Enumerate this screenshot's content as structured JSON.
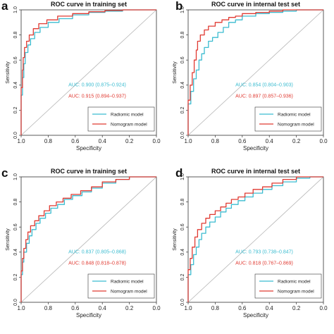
{
  "figure": {
    "panels": [
      {
        "letter": "a",
        "title": "ROC curve in training set"
      },
      {
        "letter": "b",
        "title": "ROC curve in internal test set"
      },
      {
        "letter": "c",
        "title": "ROC curve in training set"
      },
      {
        "letter": "d",
        "title": "ROC curve in internal test set"
      }
    ]
  },
  "chart_data": [
    {
      "panel": "a",
      "type": "line",
      "title": "ROC curve in training set",
      "xlabel": "Specificity",
      "ylabel": "Sensitivity",
      "x_reversed": true,
      "xlim": [
        1.0,
        0.0
      ],
      "ylim": [
        0.0,
        1.0
      ],
      "xticks": [
        "1.0",
        "0.8",
        "0.6",
        "0.4",
        "0.2",
        "0.0"
      ],
      "yticks": [
        "0.0",
        "0.2",
        "0.4",
        "0.6",
        "0.8",
        "1.0"
      ],
      "legend_position": "bottom-right",
      "reference_line": true,
      "annotations": [
        "AUC: 0.900 (0.875–0.924)",
        "AUC: 0.915 (0.894–0.937)"
      ],
      "series": [
        {
          "name": "Radiomic model",
          "color": "#3bbcd0",
          "x": [
            1.0,
            1.0,
            0.99,
            0.98,
            0.97,
            0.95,
            0.93,
            0.9,
            0.86,
            0.8,
            0.72,
            0.62,
            0.5,
            0.38,
            0.25,
            0.12,
            0.0
          ],
          "y": [
            0.0,
            0.15,
            0.32,
            0.46,
            0.57,
            0.66,
            0.72,
            0.77,
            0.82,
            0.86,
            0.9,
            0.93,
            0.96,
            0.98,
            0.99,
            1.0,
            1.0
          ]
        },
        {
          "name": "Nomogram model",
          "color": "#e03a32",
          "x": [
            1.0,
            1.0,
            0.99,
            0.985,
            0.975,
            0.96,
            0.94,
            0.91,
            0.87,
            0.81,
            0.73,
            0.62,
            0.5,
            0.38,
            0.25,
            0.12,
            0.0
          ],
          "y": [
            0.0,
            0.2,
            0.38,
            0.52,
            0.62,
            0.7,
            0.75,
            0.8,
            0.85,
            0.89,
            0.92,
            0.95,
            0.97,
            0.985,
            0.995,
            1.0,
            1.0
          ]
        }
      ]
    },
    {
      "panel": "b",
      "type": "line",
      "title": "ROC curve in internal test set",
      "xlabel": "Specificity",
      "ylabel": "Sensitivity",
      "x_reversed": true,
      "xlim": [
        1.0,
        0.0
      ],
      "ylim": [
        0.0,
        1.0
      ],
      "xticks": [
        "1.0",
        "0.8",
        "0.6",
        "0.4",
        "0.2",
        "0.0"
      ],
      "yticks": [
        "0.0",
        "0.2",
        "0.4",
        "0.6",
        "0.8",
        "1.0"
      ],
      "legend_position": "bottom-right",
      "reference_line": true,
      "annotations": [
        "AUC: 0.854 (0.804–0.903)",
        "AUC: 0.897 (0.857–0.936)"
      ],
      "series": [
        {
          "name": "Radiomic model",
          "color": "#3bbcd0",
          "x": [
            1.0,
            1.0,
            0.98,
            0.96,
            0.94,
            0.92,
            0.9,
            0.88,
            0.85,
            0.82,
            0.78,
            0.74,
            0.7,
            0.65,
            0.6,
            0.5,
            0.4,
            0.3,
            0.2,
            0.1,
            0.0
          ],
          "y": [
            0.0,
            0.12,
            0.25,
            0.35,
            0.45,
            0.52,
            0.6,
            0.65,
            0.7,
            0.75,
            0.78,
            0.82,
            0.86,
            0.9,
            0.92,
            0.95,
            0.97,
            0.98,
            0.99,
            1.0,
            1.0
          ]
        },
        {
          "name": "Nomogram model",
          "color": "#e03a32",
          "x": [
            1.0,
            1.0,
            0.985,
            0.97,
            0.955,
            0.94,
            0.93,
            0.91,
            0.88,
            0.85,
            0.8,
            0.75,
            0.7,
            0.65,
            0.6,
            0.5,
            0.4,
            0.3,
            0.2,
            0.1,
            0.0
          ],
          "y": [
            0.0,
            0.15,
            0.28,
            0.4,
            0.5,
            0.6,
            0.68,
            0.75,
            0.8,
            0.84,
            0.87,
            0.9,
            0.92,
            0.94,
            0.95,
            0.97,
            0.98,
            0.99,
            1.0,
            1.0,
            1.0
          ]
        }
      ]
    },
    {
      "panel": "c",
      "type": "line",
      "title": "ROC curve in training set",
      "xlabel": "Specificity",
      "ylabel": "Sensitivity",
      "x_reversed": true,
      "xlim": [
        1.0,
        0.0
      ],
      "ylim": [
        0.0,
        1.0
      ],
      "xticks": [
        "1.0",
        "0.8",
        "0.6",
        "0.4",
        "0.2",
        "0.0"
      ],
      "yticks": [
        "0.0",
        "0.2",
        "0.4",
        "0.6",
        "0.8",
        "1.0"
      ],
      "legend_position": "bottom-right",
      "reference_line": true,
      "annotations": [
        "AUC: 0.837 (0.805–0.868)",
        "AUC: 0.848 (0.818–0.878)"
      ],
      "series": [
        {
          "name": "Radiomic model",
          "color": "#3bbcd0",
          "x": [
            1.0,
            1.0,
            0.99,
            0.98,
            0.96,
            0.94,
            0.92,
            0.89,
            0.86,
            0.82,
            0.78,
            0.73,
            0.68,
            0.62,
            0.55,
            0.48,
            0.4,
            0.3,
            0.2,
            0.1,
            0.0
          ],
          "y": [
            0.0,
            0.12,
            0.22,
            0.32,
            0.4,
            0.47,
            0.53,
            0.58,
            0.63,
            0.67,
            0.71,
            0.75,
            0.78,
            0.82,
            0.85,
            0.88,
            0.91,
            0.95,
            0.98,
            1.0,
            1.0
          ]
        },
        {
          "name": "Nomogram model",
          "color": "#e03a32",
          "x": [
            1.0,
            1.0,
            0.99,
            0.98,
            0.965,
            0.95,
            0.93,
            0.9,
            0.87,
            0.83,
            0.79,
            0.74,
            0.69,
            0.63,
            0.56,
            0.48,
            0.4,
            0.3,
            0.2,
            0.1,
            0.0
          ],
          "y": [
            0.0,
            0.15,
            0.25,
            0.35,
            0.43,
            0.5,
            0.56,
            0.61,
            0.65,
            0.69,
            0.73,
            0.77,
            0.8,
            0.83,
            0.86,
            0.89,
            0.92,
            0.96,
            0.98,
            1.0,
            1.0
          ]
        }
      ]
    },
    {
      "panel": "d",
      "type": "line",
      "title": "ROC curve in internal test set",
      "xlabel": "Specificity",
      "ylabel": "Sensitivity",
      "x_reversed": true,
      "xlim": [
        1.0,
        0.0
      ],
      "ylim": [
        0.0,
        1.0
      ],
      "xticks": [
        "1.0",
        "0.8",
        "0.6",
        "0.4",
        "0.2",
        "0.0"
      ],
      "yticks": [
        "0.0",
        "0.2",
        "0.4",
        "0.6",
        "0.8",
        "1.0"
      ],
      "legend_position": "bottom-right",
      "reference_line": true,
      "annotations": [
        "AUC: 0.793 (0.738–0.847)",
        "AUC: 0.818 (0.767–0.869)"
      ],
      "series": [
        {
          "name": "Radiomic model",
          "color": "#3bbcd0",
          "x": [
            1.0,
            1.0,
            0.98,
            0.96,
            0.94,
            0.92,
            0.9,
            0.87,
            0.84,
            0.8,
            0.76,
            0.72,
            0.68,
            0.63,
            0.58,
            0.52,
            0.45,
            0.38,
            0.3,
            0.2,
            0.1,
            0.0
          ],
          "y": [
            0.0,
            0.12,
            0.22,
            0.3,
            0.38,
            0.44,
            0.5,
            0.55,
            0.6,
            0.64,
            0.68,
            0.72,
            0.75,
            0.78,
            0.81,
            0.84,
            0.87,
            0.9,
            0.93,
            0.96,
            0.99,
            1.0
          ]
        },
        {
          "name": "Nomogram model",
          "color": "#e03a32",
          "x": [
            1.0,
            1.0,
            0.985,
            0.97,
            0.95,
            0.93,
            0.9,
            0.87,
            0.84,
            0.8,
            0.76,
            0.72,
            0.68,
            0.63,
            0.58,
            0.52,
            0.45,
            0.38,
            0.3,
            0.2,
            0.1,
            0.0
          ],
          "y": [
            0.0,
            0.15,
            0.26,
            0.35,
            0.44,
            0.52,
            0.58,
            0.63,
            0.67,
            0.7,
            0.73,
            0.76,
            0.79,
            0.82,
            0.84,
            0.87,
            0.9,
            0.92,
            0.95,
            0.98,
            1.0,
            1.0
          ]
        }
      ]
    }
  ]
}
